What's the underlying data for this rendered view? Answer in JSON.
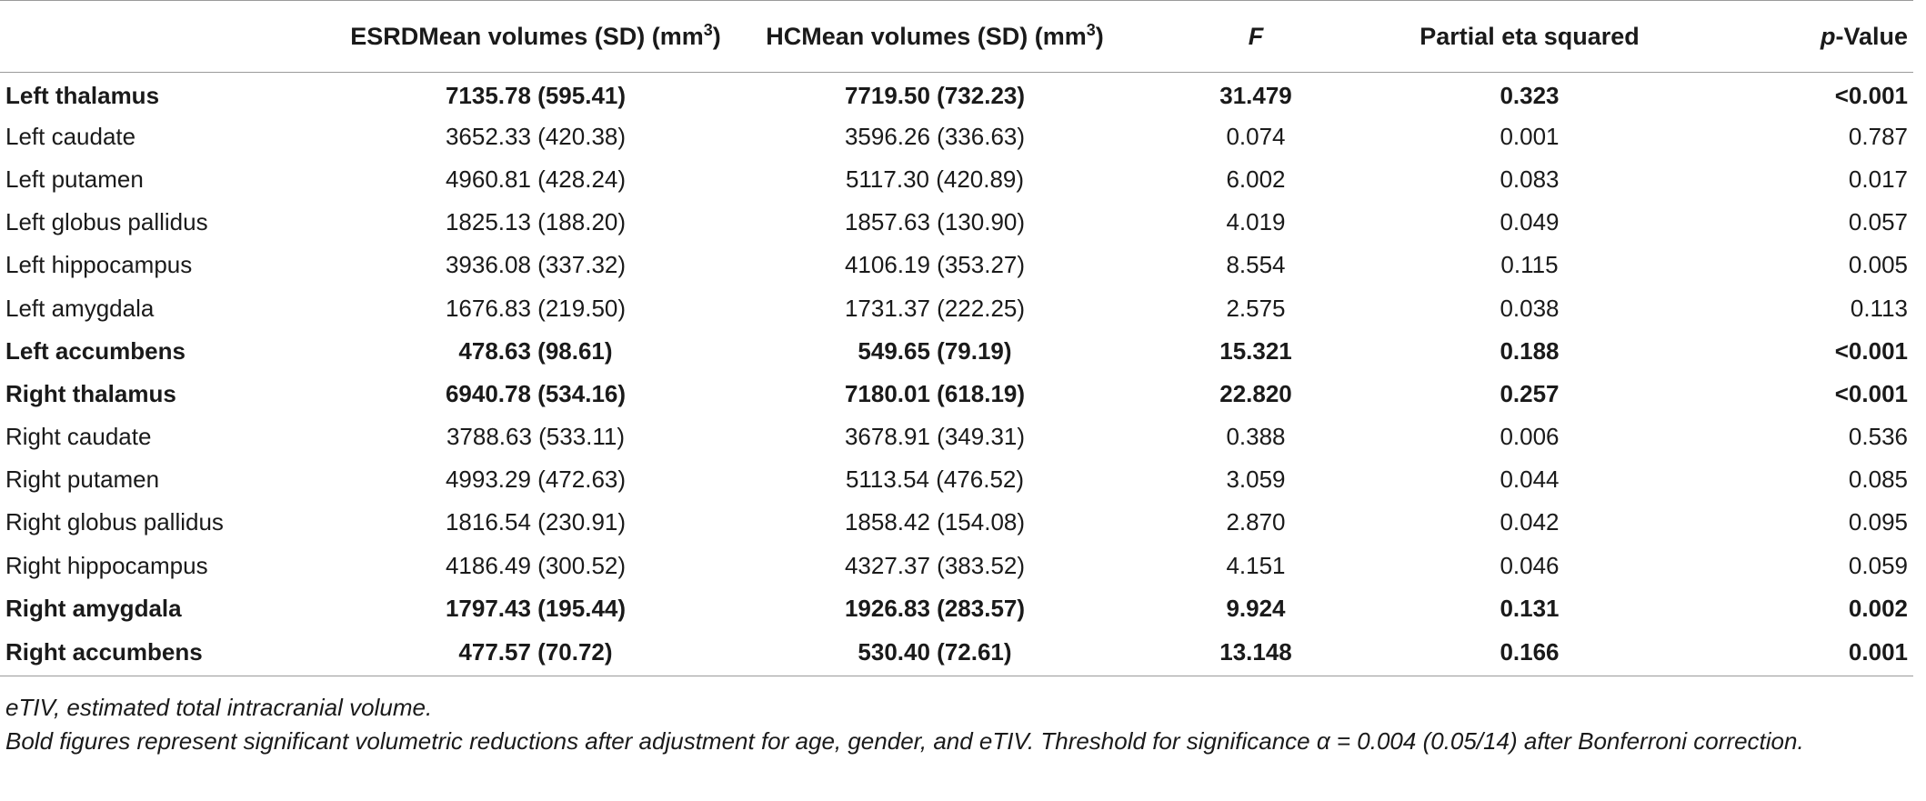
{
  "table": {
    "headers": {
      "region": "",
      "esrd_prefix": "ESRDMean volumes (SD) (mm",
      "esrd_sup": "3",
      "esrd_suffix": ")",
      "hc_prefix": "HCMean volumes (SD) (mm",
      "hc_sup": "3",
      "hc_suffix": ")",
      "f": "F",
      "eta": "Partial eta squared",
      "p_italic": "p",
      "p_rest": "-Value"
    },
    "rows": [
      {
        "region": "Left thalamus",
        "esrd": "7135.78 (595.41)",
        "hc": "7719.50 (732.23)",
        "f": "31.479",
        "eta": "0.323",
        "p": "<0.001",
        "significant": true
      },
      {
        "region": "Left caudate",
        "esrd": "3652.33 (420.38)",
        "hc": "3596.26 (336.63)",
        "f": "0.074",
        "eta": "0.001",
        "p": "0.787",
        "significant": false
      },
      {
        "region": "Left putamen",
        "esrd": "4960.81 (428.24)",
        "hc": "5117.30 (420.89)",
        "f": "6.002",
        "eta": "0.083",
        "p": "0.017",
        "significant": false
      },
      {
        "region": "Left globus pallidus",
        "esrd": "1825.13 (188.20)",
        "hc": "1857.63 (130.90)",
        "f": "4.019",
        "eta": "0.049",
        "p": "0.057",
        "significant": false
      },
      {
        "region": "Left hippocampus",
        "esrd": "3936.08 (337.32)",
        "hc": "4106.19 (353.27)",
        "f": "8.554",
        "eta": "0.115",
        "p": "0.005",
        "significant": false
      },
      {
        "region": "Left amygdala",
        "esrd": "1676.83 (219.50)",
        "hc": "1731.37 (222.25)",
        "f": "2.575",
        "eta": "0.038",
        "p": "0.113",
        "significant": false
      },
      {
        "region": "Left accumbens",
        "esrd": "478.63 (98.61)",
        "hc": "549.65 (79.19)",
        "f": "15.321",
        "eta": "0.188",
        "p": "<0.001",
        "significant": true
      },
      {
        "region": "Right thalamus",
        "esrd": "6940.78 (534.16)",
        "hc": "7180.01 (618.19)",
        "f": "22.820",
        "eta": "0.257",
        "p": "<0.001",
        "significant": true
      },
      {
        "region": "Right caudate",
        "esrd": "3788.63 (533.11)",
        "hc": "3678.91 (349.31)",
        "f": "0.388",
        "eta": "0.006",
        "p": "0.536",
        "significant": false
      },
      {
        "region": "Right putamen",
        "esrd": "4993.29 (472.63)",
        "hc": "5113.54 (476.52)",
        "f": "3.059",
        "eta": "0.044",
        "p": "0.085",
        "significant": false
      },
      {
        "region": "Right globus pallidus",
        "esrd": "1816.54 (230.91)",
        "hc": "1858.42 (154.08)",
        "f": "2.870",
        "eta": "0.042",
        "p": "0.095",
        "significant": false
      },
      {
        "region": "Right hippocampus",
        "esrd": "4186.49 (300.52)",
        "hc": "4327.37 (383.52)",
        "f": "4.151",
        "eta": "0.046",
        "p": "0.059",
        "significant": false
      },
      {
        "region": "Right amygdala",
        "esrd": "1797.43 (195.44)",
        "hc": "1926.83 (283.57)",
        "f": "9.924",
        "eta": "0.131",
        "p": "0.002",
        "significant": true
      },
      {
        "region": "Right accumbens",
        "esrd": "477.57 (70.72)",
        "hc": "530.40 (72.61)",
        "f": "13.148",
        "eta": "0.166",
        "p": "0.001",
        "significant": true
      }
    ]
  },
  "footnotes": [
    "eTIV, estimated total intracranial volume.",
    "Bold figures represent significant volumetric reductions after adjustment for age, gender, and eTIV. Threshold for significance α = 0.004 (0.05/14) after Bonferroni correction."
  ]
}
